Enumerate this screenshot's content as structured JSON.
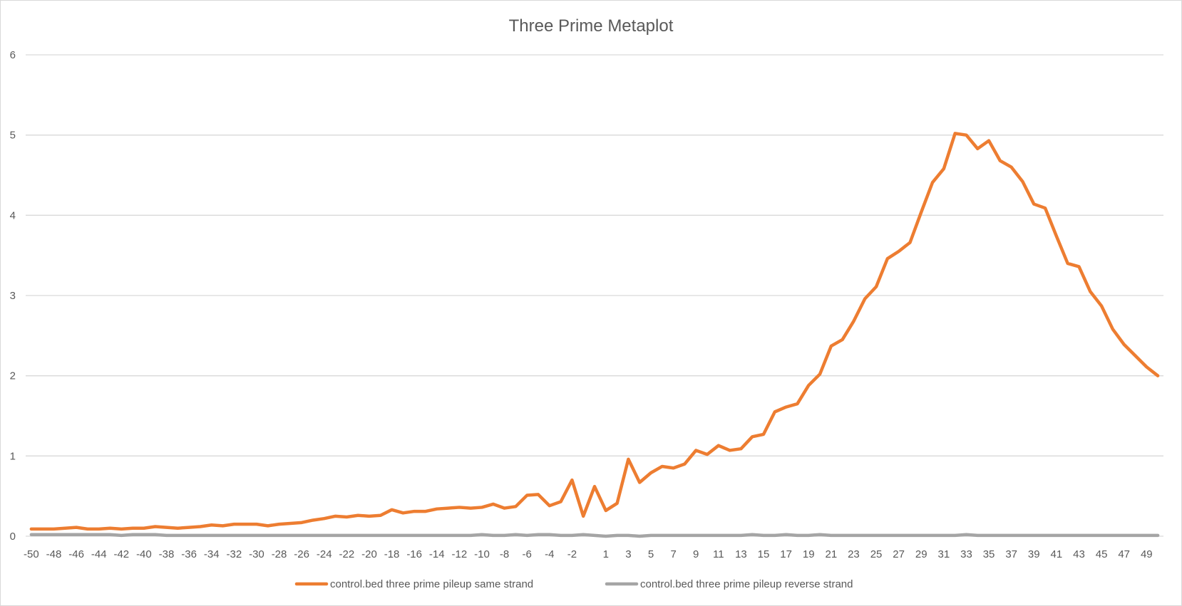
{
  "chart_data": {
    "type": "line",
    "title": "Three Prime Metaplot",
    "xlabel": "",
    "ylabel": "",
    "ylim": [
      0,
      6
    ],
    "yticks": [
      "0",
      "1",
      "2",
      "3",
      "4",
      "5",
      "6"
    ],
    "grid": "horizontal",
    "legend_position": "bottom",
    "x": [
      -50,
      -49,
      -48,
      -47,
      -46,
      -45,
      -44,
      -43,
      -42,
      -41,
      -40,
      -39,
      -38,
      -37,
      -36,
      -35,
      -34,
      -33,
      -32,
      -31,
      -30,
      -29,
      -28,
      -27,
      -26,
      -25,
      -24,
      -23,
      -22,
      -21,
      -20,
      -19,
      -18,
      -17,
      -16,
      -15,
      -14,
      -13,
      -12,
      -11,
      -10,
      -9,
      -8,
      -7,
      -6,
      -5,
      -4,
      -3,
      -2,
      -1,
      0,
      1,
      2,
      3,
      4,
      5,
      6,
      7,
      8,
      9,
      10,
      11,
      12,
      13,
      14,
      15,
      16,
      17,
      18,
      19,
      20,
      21,
      22,
      23,
      24,
      25,
      26,
      27,
      28,
      29,
      30,
      31,
      32,
      33,
      34,
      35,
      36,
      37,
      38,
      39,
      40,
      41,
      42,
      43,
      44,
      45,
      46,
      47,
      48,
      49,
      50
    ],
    "xtick_labels": [
      "-50",
      "-48",
      "-46",
      "-44",
      "-42",
      "-40",
      "-38",
      "-36",
      "-34",
      "-32",
      "-30",
      "-28",
      "-26",
      "-24",
      "-22",
      "-20",
      "-18",
      "-16",
      "-14",
      "-12",
      "-10",
      "-8",
      "-6",
      "-4",
      "-2",
      "1",
      "3",
      "5",
      "7",
      "9",
      "11",
      "13",
      "15",
      "17",
      "19",
      "21",
      "23",
      "25",
      "27",
      "29",
      "31",
      "33",
      "35",
      "37",
      "39",
      "41",
      "43",
      "45",
      "47",
      "49"
    ],
    "series": [
      {
        "name": "control.bed three prime pileup same strand",
        "color": "#ED7D31",
        "values": [
          0.09,
          0.09,
          0.09,
          0.1,
          0.11,
          0.09,
          0.09,
          0.1,
          0.09,
          0.1,
          0.1,
          0.12,
          0.11,
          0.1,
          0.11,
          0.12,
          0.14,
          0.13,
          0.15,
          0.15,
          0.15,
          0.13,
          0.15,
          0.16,
          0.17,
          0.2,
          0.22,
          0.25,
          0.24,
          0.26,
          0.25,
          0.26,
          0.33,
          0.29,
          0.31,
          0.31,
          0.34,
          0.35,
          0.36,
          0.35,
          0.36,
          0.4,
          0.35,
          0.37,
          0.51,
          0.52,
          0.38,
          0.43,
          0.7,
          0.25,
          0.62,
          0.32,
          0.41,
          0.96,
          0.67,
          0.79,
          0.87,
          0.85,
          0.9,
          1.07,
          1.02,
          1.13,
          1.07,
          1.09,
          1.24,
          1.27,
          1.55,
          1.61,
          1.65,
          1.88,
          2.02,
          2.37,
          2.45,
          2.68,
          2.96,
          3.11,
          3.46,
          3.55,
          3.66,
          4.04,
          4.41,
          4.58,
          5.02,
          5.0,
          4.83,
          4.93,
          4.68,
          4.6,
          4.42,
          4.14,
          4.09,
          3.74,
          3.4,
          3.36,
          3.05,
          2.87,
          2.58,
          2.39,
          2.25,
          2.11,
          2.0
        ]
      },
      {
        "name": "control.bed three prime pileup reverse strand",
        "color": "#A5A5A5",
        "values": [
          0.02,
          0.02,
          0.02,
          0.02,
          0.02,
          0.02,
          0.02,
          0.02,
          0.01,
          0.02,
          0.02,
          0.02,
          0.01,
          0.01,
          0.01,
          0.01,
          0.01,
          0.01,
          0.01,
          0.01,
          0.01,
          0.01,
          0.01,
          0.01,
          0.01,
          0.01,
          0.01,
          0.01,
          0.01,
          0.01,
          0.01,
          0.01,
          0.01,
          0.01,
          0.01,
          0.01,
          0.01,
          0.01,
          0.01,
          0.01,
          0.02,
          0.01,
          0.01,
          0.02,
          0.01,
          0.02,
          0.02,
          0.01,
          0.01,
          0.02,
          0.01,
          0.0,
          0.01,
          0.01,
          0.0,
          0.01,
          0.01,
          0.01,
          0.01,
          0.01,
          0.01,
          0.01,
          0.01,
          0.01,
          0.02,
          0.01,
          0.01,
          0.02,
          0.01,
          0.01,
          0.02,
          0.01,
          0.01,
          0.01,
          0.01,
          0.01,
          0.01,
          0.01,
          0.01,
          0.01,
          0.01,
          0.01,
          0.01,
          0.02,
          0.01,
          0.01,
          0.01,
          0.01,
          0.01,
          0.01,
          0.01,
          0.01,
          0.01,
          0.01,
          0.01,
          0.01,
          0.01,
          0.01,
          0.01,
          0.01,
          0.01
        ]
      }
    ]
  }
}
